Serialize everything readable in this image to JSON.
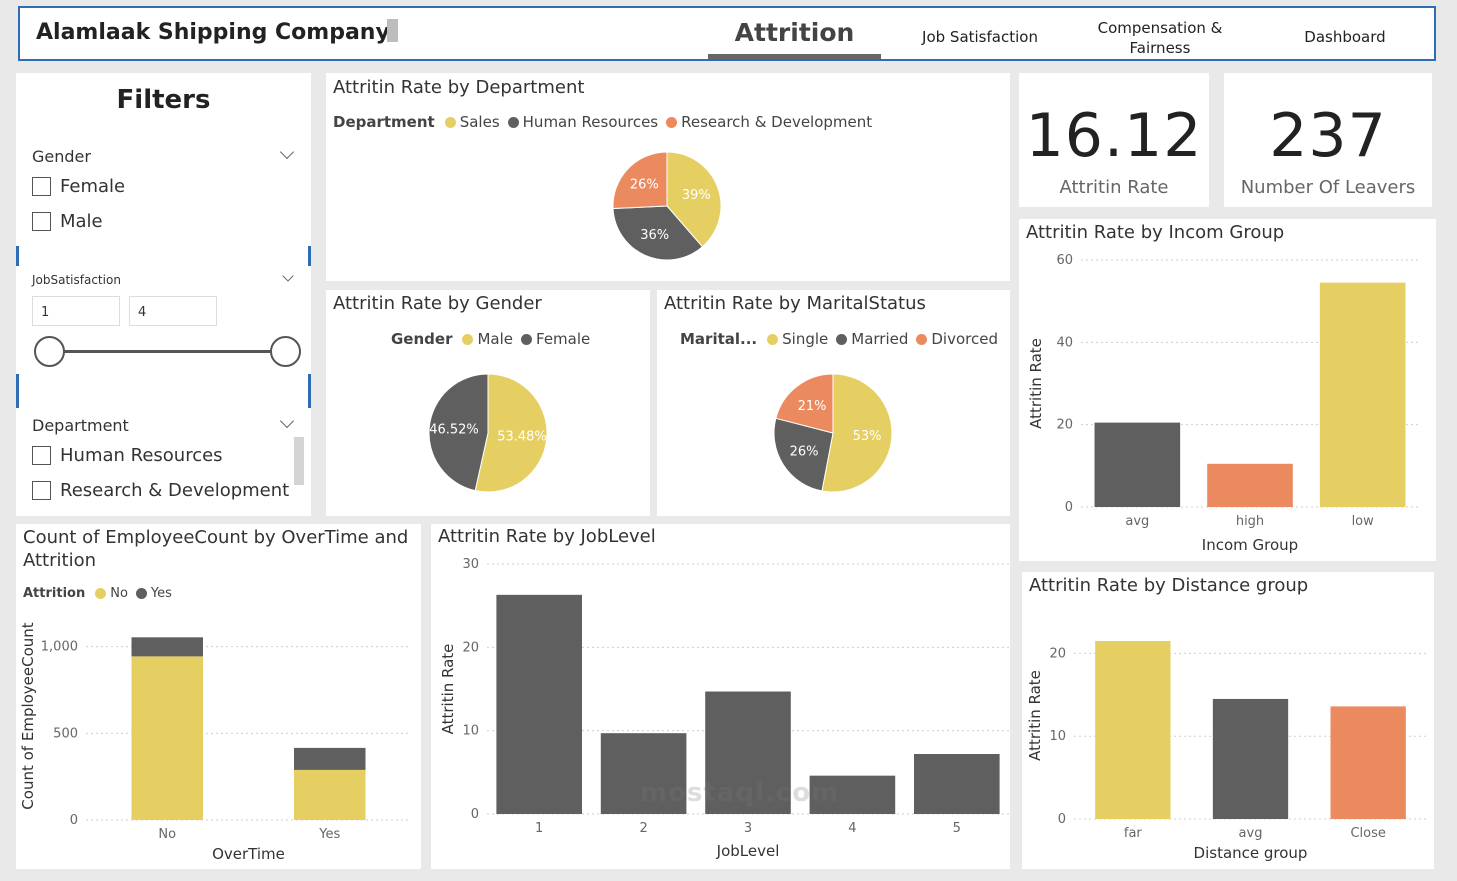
{
  "header": {
    "company": "Alamlaak Shipping Company",
    "tabs": [
      {
        "label": "Attrition",
        "active": true
      },
      {
        "label": "Job Satisfaction"
      },
      {
        "label": "Compensation & Fairness"
      },
      {
        "label": "Dashboard"
      }
    ]
  },
  "filters": {
    "title": "Filters",
    "gender": {
      "label": "Gender",
      "options": [
        "Female",
        "Male"
      ]
    },
    "job_satisfaction": {
      "label": "JobSatisfaction",
      "min": "1",
      "max": "4"
    },
    "department": {
      "label": "Department",
      "options": [
        "Human Resources",
        "Research & Development"
      ]
    }
  },
  "kpis": {
    "rate": {
      "value": "16.12",
      "label": "Attritin Rate"
    },
    "leavers": {
      "value": "237",
      "label": "Number Of Leavers"
    }
  },
  "colors": {
    "yellow": "#e6cf62",
    "gray": "#5f5f5f",
    "orange": "#eb8a5f"
  },
  "chart_data": [
    {
      "id": "dept",
      "type": "pie",
      "title": "Attritin Rate by Department",
      "legend_title": "Department",
      "categories": [
        "Sales",
        "Human Resources",
        "Research & Development"
      ],
      "slices": [
        {
          "name": "Sales",
          "value": 39,
          "label": "39%",
          "color": "#e6cf62"
        },
        {
          "name": "Human Resources",
          "value": 36,
          "label": "36%",
          "color": "#5f5f5f"
        },
        {
          "name": "Research & Development",
          "value": 26,
          "label": "26%",
          "color": "#eb8a5f"
        }
      ]
    },
    {
      "id": "gender",
      "type": "pie",
      "title": "Attritin Rate by Gender",
      "legend_title": "Gender",
      "categories": [
        "Male",
        "Female"
      ],
      "slices": [
        {
          "name": "Male",
          "value": 53.48,
          "label": "53.48%",
          "color": "#e6cf62"
        },
        {
          "name": "Female",
          "value": 46.52,
          "label": "46.52%",
          "color": "#5f5f5f"
        }
      ]
    },
    {
      "id": "marital",
      "type": "pie",
      "title": "Attritin Rate by MaritalStatus",
      "legend_title": "Marital...",
      "categories": [
        "Single",
        "Married",
        "Divorced"
      ],
      "slices": [
        {
          "name": "Single",
          "value": 53,
          "label": "53%",
          "color": "#e6cf62"
        },
        {
          "name": "Married",
          "value": 26,
          "label": "26%",
          "color": "#5f5f5f"
        },
        {
          "name": "Divorced",
          "value": 21,
          "label": "21%",
          "color": "#eb8a5f"
        }
      ]
    },
    {
      "id": "income",
      "type": "bar",
      "title": "Attritin Rate by Incom Group",
      "xlabel": "Incom Group",
      "ylabel": "Attritin Rate",
      "categories": [
        "avg",
        "high",
        "low"
      ],
      "values": [
        20.5,
        10.5,
        54.5
      ],
      "colors": [
        "#5f5f5f",
        "#eb8a5f",
        "#e6cf62"
      ],
      "ylim": [
        0,
        60
      ],
      "yticks": [
        0,
        20,
        40,
        60
      ]
    },
    {
      "id": "overtime",
      "type": "bar",
      "stacked": true,
      "title": "Count of EmployeeCount by OverTime and Attrition",
      "legend_title": "Attrition",
      "xlabel": "OverTime",
      "ylabel": "Count of EmployeeCount",
      "categories": [
        "No",
        "Yes"
      ],
      "series": [
        {
          "name": "No",
          "values": [
            944,
            289
          ],
          "color": "#e6cf62"
        },
        {
          "name": "Yes",
          "values": [
            110,
            127
          ],
          "color": "#5f5f5f"
        }
      ],
      "ylim": [
        0,
        1200
      ],
      "yticks": [
        0,
        500,
        1000
      ],
      "ytick_labels": [
        "0",
        "500",
        "1,000"
      ]
    },
    {
      "id": "joblevel",
      "type": "bar",
      "title": "Attritin Rate by JobLevel",
      "xlabel": "JobLevel",
      "ylabel": "Attritin Rate",
      "categories": [
        "1",
        "2",
        "3",
        "4",
        "5"
      ],
      "values": [
        26.3,
        9.7,
        14.7,
        4.6,
        7.2
      ],
      "colors": [
        "#5f5f5f",
        "#5f5f5f",
        "#5f5f5f",
        "#5f5f5f",
        "#5f5f5f"
      ],
      "ylim": [
        0,
        30
      ],
      "yticks": [
        0,
        10,
        20,
        30
      ]
    },
    {
      "id": "distance",
      "type": "bar",
      "title": "Attritin Rate by Distance group",
      "xlabel": "Distance group",
      "ylabel": "Attritin Rate",
      "categories": [
        "far",
        "avg",
        "Close"
      ],
      "values": [
        21.5,
        14.5,
        13.6
      ],
      "colors": [
        "#e6cf62",
        "#5f5f5f",
        "#eb8a5f"
      ],
      "ylim": [
        0,
        25
      ],
      "yticks": [
        0,
        10,
        20
      ]
    }
  ],
  "watermark": "mostaql.com"
}
